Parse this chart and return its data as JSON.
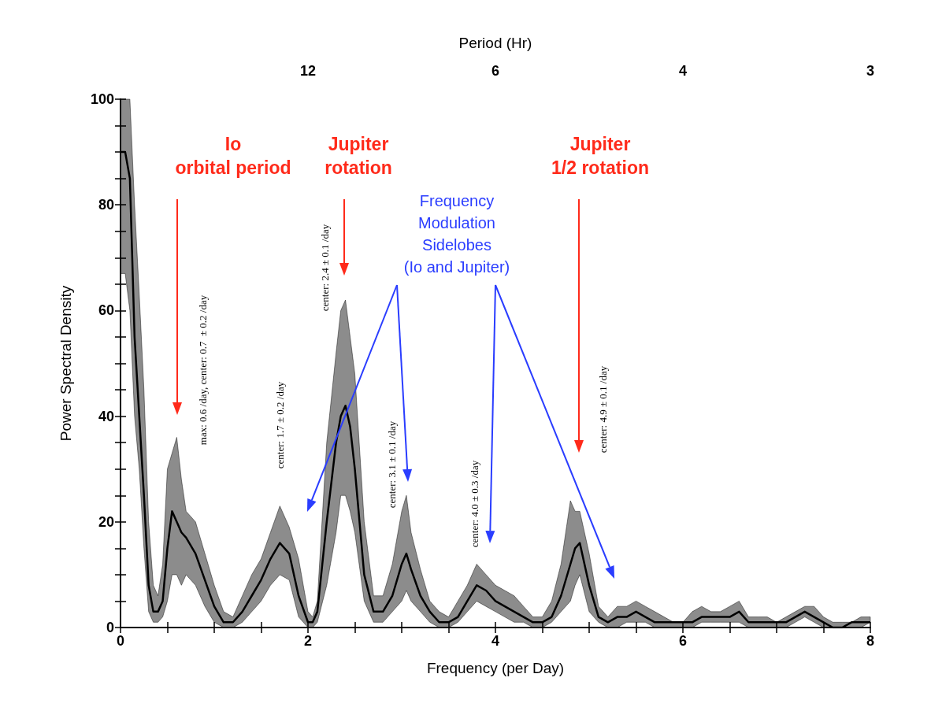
{
  "chart_data": {
    "type": "line",
    "xlabel": "Frequency (per Day)",
    "ylabel": "Power Spectral Density",
    "x2label": "Period (Hr)",
    "xlim": [
      0,
      8
    ],
    "ylim": [
      0,
      100
    ],
    "xticks": [
      0,
      {
        "value": 0.5,
        "label": null
      },
      {
        "value": 1,
        "label": null
      },
      {
        "value": 1.5,
        "label": null
      },
      2,
      {
        "value": 2.5,
        "label": null
      },
      {
        "value": 3,
        "label": null
      },
      {
        "value": 3.5,
        "label": null
      },
      4,
      {
        "value": 4.5,
        "label": null
      },
      {
        "value": 5,
        "label": null
      },
      {
        "value": 5.5,
        "label": null
      },
      6,
      {
        "value": 6.5,
        "label": null
      },
      {
        "value": 7,
        "label": null
      },
      {
        "value": 7.5,
        "label": null
      },
      8
    ],
    "yticks": [
      0,
      {
        "value": 5,
        "label": null
      },
      {
        "value": 10,
        "label": null
      },
      {
        "value": 15,
        "label": null
      },
      20,
      {
        "value": 25,
        "label": null
      },
      {
        "value": 30,
        "label": null
      },
      {
        "value": 35,
        "label": null
      },
      40,
      {
        "value": 45,
        "label": null
      },
      {
        "value": 50,
        "label": null
      },
      {
        "value": 55,
        "label": null
      },
      60,
      {
        "value": 65,
        "label": null
      },
      {
        "value": 70,
        "label": null
      },
      {
        "value": 75,
        "label": null
      },
      80,
      {
        "value": 85,
        "label": null
      },
      {
        "value": 90,
        "label": null
      },
      {
        "value": 95,
        "label": null
      },
      100
    ],
    "grid": false,
    "marker": "none",
    "line_style": "solid",
    "series": [
      {
        "color": "#000000",
        "x": [
          0,
          0.05,
          0.1,
          0.15,
          0.2,
          0.25,
          0.3,
          0.35,
          0.4,
          0.45,
          0.5,
          0.55,
          0.6,
          0.65,
          0.7,
          0.8,
          0.9,
          1.0,
          1.1,
          1.2,
          1.3,
          1.4,
          1.5,
          1.6,
          1.7,
          1.8,
          1.9,
          2.0,
          2.05,
          2.1,
          2.2,
          2.3,
          2.35,
          2.4,
          2.45,
          2.5,
          2.6,
          2.7,
          2.8,
          2.9,
          3.0,
          3.05,
          3.1,
          3.2,
          3.3,
          3.4,
          3.5,
          3.6,
          3.7,
          3.8,
          3.9,
          4.0,
          4.1,
          4.2,
          4.3,
          4.4,
          4.5,
          4.6,
          4.7,
          4.8,
          4.85,
          4.9,
          5.0,
          5.1,
          5.2,
          5.3,
          5.4,
          5.5,
          5.6,
          5.7,
          5.8,
          5.9,
          6.0,
          6.1,
          6.2,
          6.3,
          6.4,
          6.5,
          6.6,
          6.7,
          6.8,
          6.9,
          7.0,
          7.1,
          7.2,
          7.3,
          7.4,
          7.5,
          7.6,
          7.7,
          7.8,
          7.9,
          8.0
        ],
        "values": [
          90,
          90,
          85,
          55,
          40,
          25,
          8,
          3,
          3,
          5,
          15,
          22,
          20,
          18,
          17,
          14,
          9,
          4,
          1,
          1,
          3,
          6,
          9,
          13,
          16,
          14,
          6,
          1,
          1,
          3,
          20,
          35,
          40,
          42,
          38,
          30,
          10,
          3,
          3,
          6,
          12,
          14,
          11,
          6,
          3,
          1,
          1,
          2,
          5,
          8,
          7,
          5,
          4,
          3,
          2,
          1,
          1,
          2,
          6,
          12,
          15,
          16,
          8,
          2,
          1,
          2,
          2,
          3,
          2,
          1,
          1,
          1,
          1,
          1,
          2,
          2,
          2,
          2,
          3,
          1,
          1,
          1,
          1,
          1,
          2,
          3,
          2,
          1,
          0,
          0,
          1,
          1,
          1
        ],
        "lower": [
          67,
          67,
          60,
          40,
          30,
          15,
          3,
          1,
          1,
          2,
          5,
          10,
          10,
          8,
          10,
          8,
          4,
          1,
          0,
          0,
          1,
          3,
          5,
          8,
          10,
          9,
          2,
          0,
          0,
          1,
          8,
          18,
          25,
          25,
          22,
          18,
          5,
          1,
          1,
          3,
          5,
          7,
          5,
          3,
          1,
          0,
          0,
          1,
          3,
          5,
          4,
          3,
          2,
          1,
          1,
          0,
          0,
          1,
          3,
          5,
          8,
          10,
          3,
          1,
          0,
          0,
          1,
          1,
          1,
          0,
          0,
          0,
          0,
          0,
          1,
          1,
          1,
          1,
          1,
          0,
          0,
          0,
          0,
          0,
          1,
          2,
          1,
          0,
          0,
          0,
          0,
          0,
          1
        ],
        "upper": [
          100,
          100,
          100,
          80,
          63,
          45,
          20,
          8,
          6,
          12,
          30,
          33,
          36,
          28,
          22,
          20,
          14,
          8,
          3,
          2,
          6,
          10,
          13,
          18,
          23,
          19,
          13,
          3,
          2,
          5,
          35,
          52,
          60,
          62,
          55,
          48,
          20,
          6,
          6,
          12,
          22,
          25,
          18,
          11,
          5,
          3,
          2,
          5,
          8,
          12,
          10,
          8,
          7,
          6,
          4,
          2,
          2,
          5,
          12,
          24,
          22,
          22,
          14,
          4,
          2,
          4,
          4,
          5,
          4,
          3,
          2,
          1,
          1,
          3,
          4,
          3,
          3,
          4,
          5,
          2,
          2,
          2,
          1,
          2,
          3,
          4,
          4,
          2,
          1,
          1,
          1,
          2,
          2
        ]
      }
    ],
    "annotations": [
      "Io\norbital period",
      "Jupiter\nrotation",
      "Jupiter\n1/2 rotation",
      "Frequency\nModulation\nSidelobes\n(Io and Jupiter)",
      "max: 0.6 /day, center: 0.7  ± 0.2 /day",
      "center: 1.7 ± 0.2 /day",
      "center: 2.4 ± 0.1 /day",
      "center: 3.1 ± 0.1 /day",
      "center: 4.0 ± 0.3 /day",
      "center: 4.9 ± 0.1 /day",
      "12",
      "6",
      "4",
      "3"
    ]
  }
}
